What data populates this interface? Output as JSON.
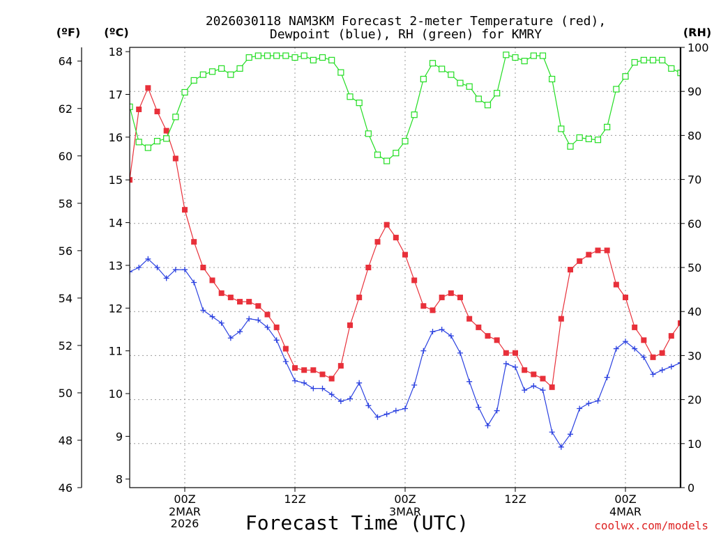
{
  "chart_data": {
    "type": "line",
    "title": "2026030118 NAM3KM Forecast 2-meter Temperature (red), Dewpoint (blue), RH (green) for KMRY",
    "title_line1": "2026030118 NAM3KM Forecast 2-meter Temperature (red),",
    "title_line2": "Dewpoint (blue), RH (green) for KMRY",
    "xlabel": "Forecast Time (UTC)",
    "credit": "coolwx.com/models",
    "x_axis": {
      "unit": "hours from 2026-03-01 18Z",
      "range": [
        0,
        60
      ],
      "tick_hours": [
        6,
        18,
        30,
        42,
        54
      ],
      "tick_labels": [
        "00Z",
        "12Z",
        "00Z",
        "12Z",
        "00Z"
      ],
      "date_labels": [
        {
          "hour": 6,
          "lines": [
            "2MAR",
            "2026"
          ]
        },
        {
          "hour": 30,
          "lines": [
            "3MAR"
          ]
        },
        {
          "hour": 54,
          "lines": [
            "4MAR"
          ]
        }
      ],
      "grid": true
    },
    "left_axis_c": {
      "label": "(ºC)",
      "range": [
        7.8,
        18.1
      ],
      "ticks": [
        8,
        9,
        10,
        11,
        12,
        13,
        14,
        15,
        16,
        17,
        18
      ]
    },
    "left_axis_f": {
      "label": "(ºF)",
      "range": [
        46.0,
        64.58
      ],
      "ticks": [
        46,
        48,
        50,
        52,
        54,
        56,
        58,
        60,
        62,
        64
      ]
    },
    "right_axis_rh": {
      "label": "(RH)",
      "range": [
        0,
        100
      ],
      "ticks": [
        0,
        10,
        20,
        30,
        40,
        50,
        60,
        70,
        80,
        90,
        100
      ]
    },
    "series": [
      {
        "name": "Temperature",
        "color": "#e8303a",
        "axis": "C",
        "marker": "filled-square",
        "x": [
          0,
          1,
          2,
          3,
          4,
          5,
          6,
          7,
          8,
          9,
          10,
          11,
          12,
          13,
          14,
          15,
          16,
          17,
          18,
          19,
          20,
          21,
          22,
          23,
          24,
          25,
          26,
          27,
          28,
          29,
          30,
          31,
          32,
          33,
          34,
          35,
          36,
          37,
          38,
          39,
          40,
          41,
          42,
          43,
          44,
          45,
          46,
          47,
          48,
          49,
          50,
          51,
          52,
          53,
          54,
          55,
          56,
          57,
          58,
          59,
          60
        ],
        "values": [
          15.0,
          16.65,
          17.15,
          16.6,
          16.15,
          15.5,
          14.3,
          13.55,
          12.95,
          12.65,
          12.35,
          12.25,
          12.15,
          12.15,
          12.05,
          11.85,
          11.55,
          11.05,
          10.6,
          10.55,
          10.55,
          10.45,
          10.35,
          10.65,
          11.6,
          12.25,
          12.95,
          13.55,
          13.95,
          13.65,
          13.25,
          12.65,
          12.05,
          11.95,
          12.25,
          12.35,
          12.25,
          11.75,
          11.55,
          11.35,
          11.25,
          10.95,
          10.95,
          10.55,
          10.45,
          10.35,
          10.15,
          11.75,
          12.9,
          13.1,
          13.25,
          13.35,
          13.35,
          12.55,
          12.25,
          11.55,
          11.25,
          10.85,
          10.95,
          11.35,
          11.65
        ]
      },
      {
        "name": "Dewpoint",
        "color": "#2a40e0",
        "axis": "C",
        "marker": "plus",
        "x": [
          0,
          1,
          2,
          3,
          4,
          5,
          6,
          7,
          8,
          9,
          10,
          11,
          12,
          13,
          14,
          15,
          16,
          17,
          18,
          19,
          20,
          21,
          22,
          23,
          24,
          25,
          26,
          27,
          28,
          29,
          30,
          31,
          32,
          33,
          34,
          35,
          36,
          37,
          38,
          39,
          40,
          41,
          42,
          43,
          44,
          45,
          46,
          47,
          48,
          49,
          50,
          51,
          52,
          53,
          54,
          55,
          56,
          57,
          58,
          59,
          60
        ],
        "values": [
          12.85,
          12.95,
          13.15,
          12.95,
          12.7,
          12.9,
          12.9,
          12.6,
          11.95,
          11.8,
          11.65,
          11.3,
          11.45,
          11.75,
          11.72,
          11.55,
          11.25,
          10.75,
          10.3,
          10.25,
          10.12,
          10.12,
          9.98,
          9.82,
          9.88,
          10.25,
          9.72,
          9.45,
          9.52,
          9.6,
          9.65,
          10.2,
          11.0,
          11.45,
          11.5,
          11.35,
          10.95,
          10.28,
          9.68,
          9.25,
          9.6,
          10.7,
          10.62,
          10.08,
          10.18,
          10.08,
          9.1,
          8.75,
          9.05,
          9.65,
          9.77,
          9.83,
          10.38,
          11.05,
          11.22,
          11.05,
          10.85,
          10.45,
          10.55,
          10.63,
          10.72
        ]
      },
      {
        "name": "RH",
        "color": "#22dd22",
        "axis": "RH",
        "marker": "open-square",
        "x": [
          0,
          1,
          2,
          3,
          4,
          5,
          6,
          7,
          8,
          9,
          10,
          11,
          12,
          13,
          14,
          15,
          16,
          17,
          18,
          19,
          20,
          21,
          22,
          23,
          24,
          25,
          26,
          27,
          28,
          29,
          30,
          31,
          32,
          33,
          34,
          35,
          36,
          37,
          38,
          39,
          40,
          41,
          42,
          43,
          44,
          45,
          46,
          47,
          48,
          49,
          50,
          51,
          52,
          53,
          54,
          55,
          56,
          57,
          58,
          59,
          60
        ],
        "values": [
          86.5,
          78.5,
          77.2,
          78.7,
          79.3,
          84.2,
          89.8,
          92.5,
          93.8,
          94.5,
          95.2,
          93.8,
          95.2,
          97.7,
          98.1,
          98.1,
          98.1,
          98.1,
          97.7,
          98.1,
          97.1,
          97.7,
          97.1,
          94.3,
          88.8,
          87.4,
          80.4,
          75.6,
          74.2,
          76.0,
          78.7,
          84.7,
          92.8,
          96.4,
          95.1,
          93.8,
          91.9,
          91.1,
          88.3,
          86.9,
          89.6,
          98.3,
          97.7,
          96.9,
          98.1,
          98.1,
          92.8,
          81.5,
          77.5,
          79.5,
          79.2,
          79.0,
          81.9,
          90.5,
          93.4,
          96.6,
          97.1,
          97.1,
          97.1,
          95.2,
          94.2
        ]
      }
    ]
  }
}
